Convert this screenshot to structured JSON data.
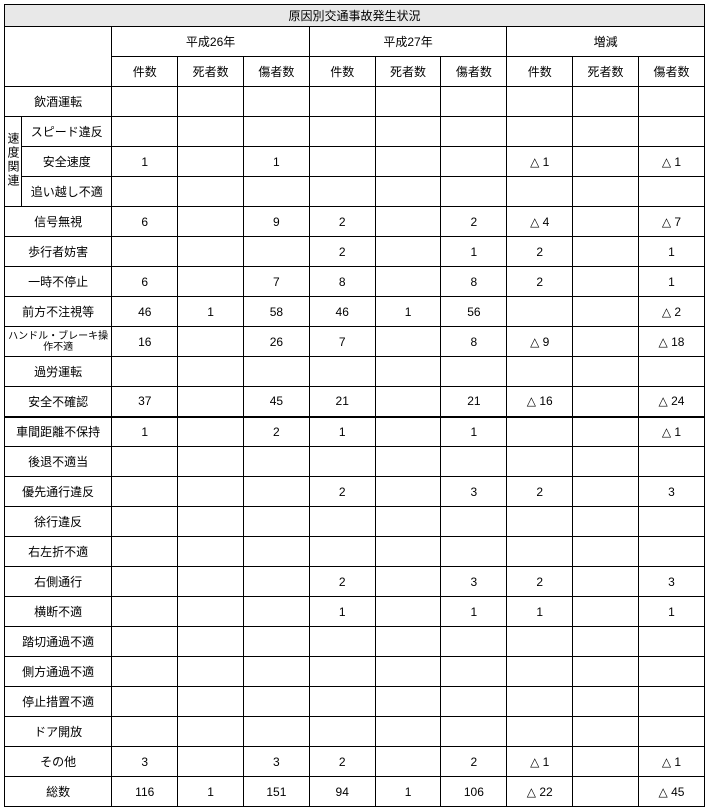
{
  "title": "原因別交通事故発生状況",
  "year_groups": [
    "平成26年",
    "平成27年",
    "増減"
  ],
  "sub_headers": [
    "件数",
    "死者数",
    "傷者数"
  ],
  "speed_group_label": "速度関連",
  "rows": [
    {
      "label": "飲酒運転",
      "cells": [
        "",
        "",
        "",
        "",
        "",
        "",
        "",
        "",
        ""
      ]
    },
    {
      "label": "スピード違反",
      "cells": [
        "",
        "",
        "",
        "",
        "",
        "",
        "",
        "",
        ""
      ],
      "group": true
    },
    {
      "label": "安全速度",
      "cells": [
        "1",
        "",
        "1",
        "",
        "",
        "",
        "△ 1",
        "",
        "△ 1"
      ],
      "group": true
    },
    {
      "label": "追い越し不適",
      "cells": [
        "",
        "",
        "",
        "",
        "",
        "",
        "",
        "",
        ""
      ],
      "group": true
    },
    {
      "label": "信号無視",
      "cells": [
        "6",
        "",
        "9",
        "2",
        "",
        "2",
        "△ 4",
        "",
        "△ 7"
      ]
    },
    {
      "label": "歩行者妨害",
      "cells": [
        "",
        "",
        "",
        "2",
        "",
        "1",
        "2",
        "",
        "1"
      ]
    },
    {
      "label": "一時不停止",
      "cells": [
        "6",
        "",
        "7",
        "8",
        "",
        "8",
        "2",
        "",
        "1"
      ]
    },
    {
      "label": "前方不注視等",
      "cells": [
        "46",
        "1",
        "58",
        "46",
        "1",
        "56",
        "",
        "",
        "△ 2"
      ]
    },
    {
      "label": "ハンドル・ブレーキ操作不適",
      "cells": [
        "16",
        "",
        "26",
        "7",
        "",
        "8",
        "△ 9",
        "",
        "△ 18"
      ],
      "small": true
    },
    {
      "label": "過労運転",
      "cells": [
        "",
        "",
        "",
        "",
        "",
        "",
        "",
        "",
        ""
      ]
    },
    {
      "label": "安全不確認",
      "cells": [
        "37",
        "",
        "45",
        "21",
        "",
        "21",
        "△ 16",
        "",
        "△ 24"
      ],
      "thick": true
    },
    {
      "label": "車間距離不保持",
      "cells": [
        "1",
        "",
        "2",
        "1",
        "",
        "1",
        "",
        "",
        "△ 1"
      ]
    },
    {
      "label": "後退不適当",
      "cells": [
        "",
        "",
        "",
        "",
        "",
        "",
        "",
        "",
        ""
      ]
    },
    {
      "label": "優先通行違反",
      "cells": [
        "",
        "",
        "",
        "2",
        "",
        "3",
        "2",
        "",
        "3"
      ]
    },
    {
      "label": "徐行違反",
      "cells": [
        "",
        "",
        "",
        "",
        "",
        "",
        "",
        "",
        ""
      ]
    },
    {
      "label": "右左折不適",
      "cells": [
        "",
        "",
        "",
        "",
        "",
        "",
        "",
        "",
        ""
      ]
    },
    {
      "label": "右側通行",
      "cells": [
        "",
        "",
        "",
        "2",
        "",
        "3",
        "2",
        "",
        "3"
      ]
    },
    {
      "label": "横断不適",
      "cells": [
        "",
        "",
        "",
        "1",
        "",
        "1",
        "1",
        "",
        "1"
      ]
    },
    {
      "label": "踏切通過不適",
      "cells": [
        "",
        "",
        "",
        "",
        "",
        "",
        "",
        "",
        ""
      ]
    },
    {
      "label": "側方通過不適",
      "cells": [
        "",
        "",
        "",
        "",
        "",
        "",
        "",
        "",
        ""
      ]
    },
    {
      "label": "停止措置不適",
      "cells": [
        "",
        "",
        "",
        "",
        "",
        "",
        "",
        "",
        ""
      ]
    },
    {
      "label": "ドア開放",
      "cells": [
        "",
        "",
        "",
        "",
        "",
        "",
        "",
        "",
        ""
      ]
    },
    {
      "label": "その他",
      "cells": [
        "3",
        "",
        "3",
        "2",
        "",
        "2",
        "△ 1",
        "",
        "△ 1"
      ]
    },
    {
      "label": "総数",
      "cells": [
        "116",
        "1",
        "151",
        "94",
        "1",
        "106",
        "△ 22",
        "",
        "△ 45"
      ]
    }
  ]
}
